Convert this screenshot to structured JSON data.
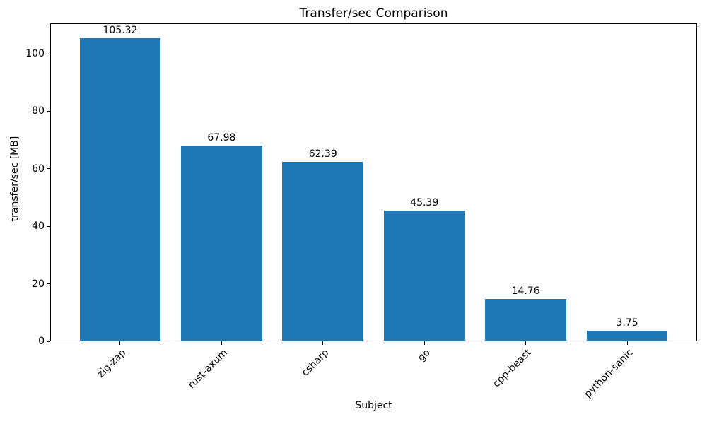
{
  "chart_data": {
    "type": "bar",
    "title": "Transfer/sec Comparison",
    "xlabel": "Subject",
    "ylabel": "transfer/sec [MB]",
    "categories": [
      "zig-zap",
      "rust-axum",
      "csharp",
      "go",
      "cpp-beast",
      "python-sanic"
    ],
    "values": [
      105.32,
      67.98,
      62.39,
      45.39,
      14.76,
      3.75
    ],
    "value_labels": [
      "105.32",
      "67.98",
      "62.39",
      "45.39",
      "14.76",
      "3.75"
    ],
    "yticks": [
      0,
      20,
      40,
      60,
      80,
      100
    ],
    "ylim": [
      0,
      110.59
    ],
    "x_tick_rotation": 45,
    "bar_color": "#1f77b4",
    "background_color": "#ffffff",
    "grid": false,
    "legend": null
  }
}
